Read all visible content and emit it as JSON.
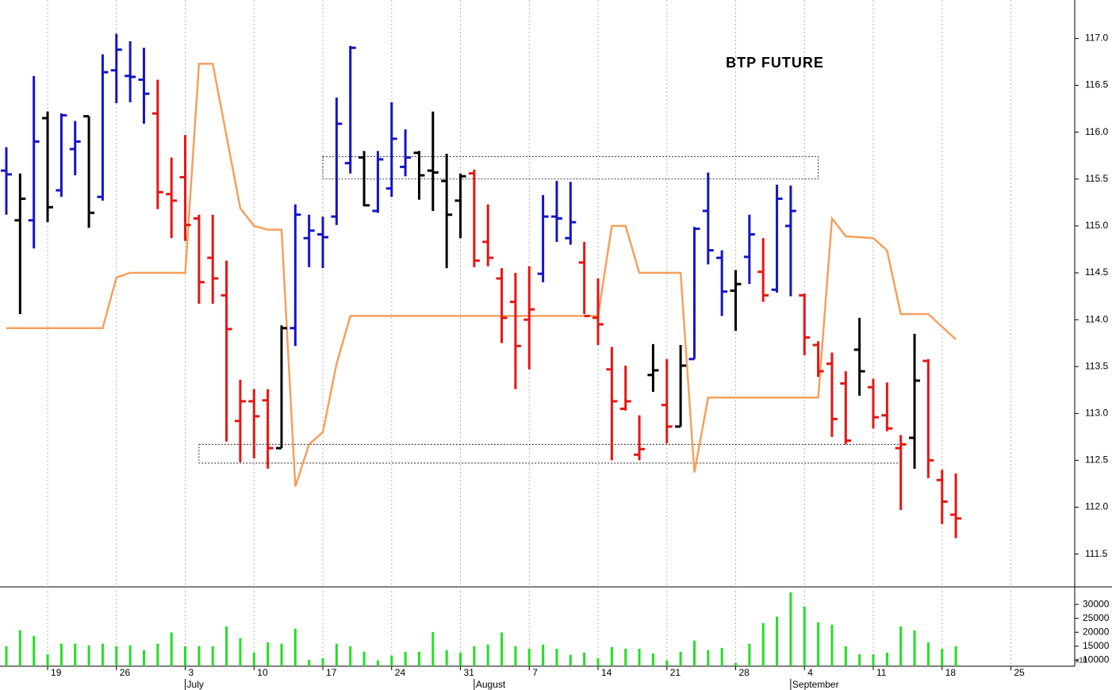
{
  "chart_data": {
    "type": "ohlc",
    "title": "BTP FUTURE",
    "open": [
      115.59,
      115.06,
      115.06,
      116.15,
      115.38,
      115.82,
      116.17,
      115.31,
      116.66,
      116.6,
      116.56,
      116.2,
      115.34,
      115.52,
      115.08,
      114.66,
      114.26,
      112.92,
      113.13,
      113.14,
      112.63,
      113.91,
      114.87,
      114.91,
      115.1,
      115.67,
      115.73,
      115.16,
      115.4,
      115.63,
      115.78,
      115.59,
      115.48,
      115.27,
      115.56,
      114.83,
      114.44,
      114.19,
      114.0,
      114.49,
      115.1,
      114.87,
      114.61,
      114.02,
      113.47,
      113.05,
      112.56,
      113.41,
      113.09,
      112.86,
      113.58,
      115.16,
      114.66,
      114.31,
      114.67,
      114.51,
      114.32,
      115.0,
      114.26,
      113.73,
      113.53,
      113.32,
      113.68,
      113.28,
      112.98,
      112.63,
      112.74,
      113.56,
      112.29,
      111.92
    ],
    "high": [
      115.84,
      115.56,
      116.6,
      116.22,
      116.2,
      116.12,
      116.17,
      116.83,
      117.05,
      116.97,
      116.9,
      116.56,
      115.73,
      115.97,
      115.12,
      115.12,
      114.63,
      113.36,
      113.26,
      113.26,
      113.94,
      115.23,
      115.12,
      115.1,
      116.37,
      116.92,
      115.8,
      115.8,
      116.32,
      116.03,
      115.8,
      116.22,
      115.77,
      115.56,
      115.6,
      115.23,
      114.55,
      114.5,
      114.57,
      115.33,
      115.48,
      115.47,
      114.83,
      114.44,
      113.71,
      113.51,
      112.98,
      113.74,
      113.58,
      113.73,
      114.99,
      115.57,
      114.74,
      114.53,
      115.12,
      114.87,
      115.44,
      115.43,
      114.28,
      113.77,
      113.65,
      113.45,
      114.02,
      113.37,
      113.33,
      112.77,
      113.85,
      113.58,
      112.4,
      112.36
    ],
    "low": [
      115.12,
      114.06,
      114.76,
      115.04,
      115.31,
      115.54,
      114.98,
      115.27,
      116.31,
      116.32,
      116.09,
      115.18,
      114.87,
      114.84,
      114.17,
      114.17,
      112.7,
      112.48,
      112.52,
      112.41,
      112.63,
      113.72,
      114.56,
      114.55,
      115.01,
      115.56,
      115.21,
      115.14,
      115.31,
      115.53,
      115.28,
      115.16,
      114.55,
      114.87,
      114.56,
      114.57,
      113.75,
      113.26,
      113.47,
      114.4,
      114.83,
      114.8,
      114.06,
      113.73,
      112.5,
      113.03,
      112.5,
      113.23,
      112.68,
      112.86,
      113.58,
      114.59,
      114.04,
      113.88,
      114.38,
      114.19,
      114.29,
      114.25,
      113.62,
      113.39,
      112.75,
      112.67,
      113.19,
      112.84,
      112.81,
      111.97,
      112.41,
      112.31,
      111.82,
      111.67
    ],
    "close": [
      115.55,
      115.29,
      115.9,
      115.2,
      116.18,
      115.9,
      115.14,
      116.64,
      116.88,
      116.59,
      116.41,
      115.36,
      115.27,
      115.01,
      114.4,
      114.44,
      113.9,
      113.13,
      112.97,
      112.63,
      113.91,
      115.12,
      114.95,
      114.88,
      116.09,
      116.9,
      115.22,
      115.71,
      115.93,
      115.73,
      115.54,
      115.57,
      115.12,
      115.53,
      114.63,
      114.66,
      114.02,
      113.72,
      114.11,
      115.1,
      115.08,
      115.04,
      114.04,
      113.95,
      113.13,
      113.13,
      112.62,
      113.46,
      112.86,
      113.51,
      114.97,
      114.74,
      114.3,
      114.38,
      114.91,
      114.26,
      115.29,
      115.16,
      113.81,
      113.45,
      112.94,
      112.71,
      113.45,
      112.96,
      112.84,
      112.67,
      113.35,
      112.5,
      112.06,
      111.88
    ],
    "colors": [
      "#1414c8",
      "#000000",
      "#1414c8",
      "#000000",
      "#1414c8",
      "#1414c8",
      "#000000",
      "#1414c8",
      "#1414c8",
      "#1414c8",
      "#1414c8",
      "#e81414",
      "#e81414",
      "#e81414",
      "#e81414",
      "#e81414",
      "#e81414",
      "#e81414",
      "#e81414",
      "#e81414",
      "#000000",
      "#1414c8",
      "#1414c8",
      "#1414c8",
      "#1414c8",
      "#1414c8",
      "#000000",
      "#1414c8",
      "#1414c8",
      "#1414c8",
      "#000000",
      "#000000",
      "#000000",
      "#000000",
      "#e81414",
      "#e81414",
      "#e81414",
      "#e81414",
      "#e81414",
      "#1414c8",
      "#1414c8",
      "#1414c8",
      "#e81414",
      "#e81414",
      "#e81414",
      "#e81414",
      "#e81414",
      "#000000",
      "#e81414",
      "#000000",
      "#1414c8",
      "#1414c8",
      "#1414c8",
      "#000000",
      "#1414c8",
      "#e81414",
      "#1414c8",
      "#1414c8",
      "#e81414",
      "#e81414",
      "#e81414",
      "#e81414",
      "#000000",
      "#e81414",
      "#e81414",
      "#e81414",
      "#000000",
      "#e81414",
      "#e81414",
      "#e81414"
    ],
    "xlim": [
      -0.46,
      77.64
    ],
    "ylim": [
      111.15,
      117.41
    ],
    "yticks": [
      111.5,
      {
        "value": 112,
        "label": "112.0"
      },
      112.5,
      {
        "value": 113,
        "label": "113.0"
      },
      113.5,
      {
        "value": 114,
        "label": "114.0"
      },
      114.5,
      {
        "value": 115,
        "label": "115.0"
      },
      115.5,
      {
        "value": 116,
        "label": "116.0"
      },
      116.5,
      {
        "value": 117,
        "label": "117.0"
      }
    ],
    "xticks": [
      {
        "value": 3,
        "label": "19"
      },
      {
        "value": 8,
        "label": "26"
      },
      {
        "value": 13,
        "label": "3"
      },
      {
        "value": 18,
        "label": "10"
      },
      {
        "value": 23,
        "label": "17"
      },
      {
        "value": 28,
        "label": "24"
      },
      {
        "value": 33,
        "label": "31"
      },
      {
        "value": 38,
        "label": "7"
      },
      {
        "value": 43,
        "label": "14"
      },
      {
        "value": 48,
        "label": "21"
      },
      {
        "value": 53,
        "label": "28"
      },
      {
        "value": 58,
        "label": "4"
      },
      {
        "value": 63,
        "label": "11"
      },
      {
        "value": 68,
        "label": "18"
      },
      {
        "value": 73,
        "label": "25"
      }
    ],
    "month_labels": [
      {
        "value": 13,
        "label": "July"
      },
      {
        "value": 34,
        "label": "August"
      },
      {
        "value": 57,
        "label": "September"
      }
    ],
    "grid": true,
    "line": {
      "color": "#f5a05c",
      "x": [
        0,
        7,
        8,
        9,
        13,
        14,
        15,
        17,
        18,
        19,
        20,
        21,
        22,
        23,
        24,
        25,
        43,
        44,
        45,
        46,
        49,
        50,
        51,
        59,
        60,
        61,
        63,
        64,
        65,
        67,
        69
      ],
      "values": [
        113.91,
        113.91,
        114.45,
        114.5,
        114.5,
        116.73,
        116.73,
        115.19,
        115.0,
        114.96,
        114.96,
        112.22,
        112.67,
        112.8,
        113.53,
        114.04,
        114.04,
        115.0,
        115.0,
        114.5,
        114.5,
        112.37,
        113.17,
        113.17,
        115.08,
        114.89,
        114.87,
        114.74,
        114.06,
        114.06,
        113.79
      ]
    },
    "boxes": [
      {
        "xlim": [
          23,
          59
        ],
        "ylim": [
          115.5,
          115.74
        ]
      },
      {
        "xlim": [
          14,
          65
        ],
        "ylim": [
          112.47,
          112.67
        ]
      }
    ],
    "volume": {
      "type": "bar",
      "color": "#22e022",
      "values": [
        15000,
        20700,
        18700,
        12100,
        15900,
        15900,
        15300,
        15900,
        15000,
        15300,
        13600,
        15900,
        19900,
        15000,
        15000,
        15000,
        22100,
        17900,
        12700,
        16400,
        15900,
        21300,
        10100,
        10700,
        15900,
        15000,
        13000,
        9900,
        11600,
        13000,
        13000,
        20100,
        13600,
        12700,
        15000,
        15600,
        19900,
        15000,
        14100,
        15600,
        14100,
        11900,
        12700,
        10700,
        14700,
        14100,
        14100,
        12400,
        9900,
        13000,
        17000,
        13600,
        14400,
        9000,
        15900,
        23300,
        25600,
        34400,
        29300,
        23600,
        22700,
        15000,
        12100,
        12100,
        12700,
        22100,
        20700,
        16400,
        14100,
        15000
      ],
      "ylim": [
        7800,
        36300
      ],
      "yticks": [
        10000,
        15000,
        20000,
        25000,
        30000
      ],
      "unit_label": "x10"
    }
  }
}
